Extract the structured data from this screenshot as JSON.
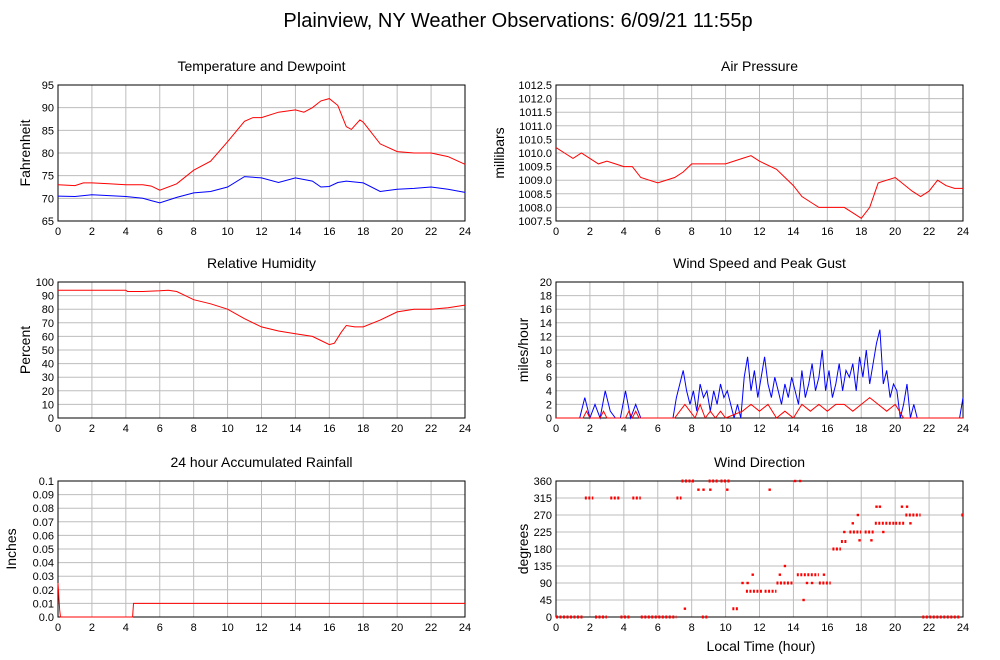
{
  "page": {
    "title": "Plainview, NY Weather Observations: 6/09/21 11:55p",
    "x_axis_label": "Local Time (hour)"
  },
  "colors": {
    "red": "#ff0000",
    "blue": "#0000ff",
    "grid": "#bdbdbd"
  },
  "chart_data": [
    {
      "id": "temp",
      "type": "line",
      "title": "Temperature and Dewpoint",
      "ylabel": "Fahrenheit",
      "xlim": [
        0,
        24
      ],
      "ylim": [
        65,
        95
      ],
      "xticks": [
        "0",
        "2",
        "4",
        "6",
        "8",
        "10",
        "12",
        "14",
        "16",
        "18",
        "20",
        "22",
        "24"
      ],
      "yticks": [
        "65",
        "70",
        "75",
        "80",
        "85",
        "90",
        "95"
      ],
      "series": [
        {
          "color": "#ff0000",
          "x": [
            0,
            1,
            1.5,
            2,
            3,
            4,
            5,
            5.5,
            6,
            7,
            8,
            9,
            10,
            11,
            11.5,
            12,
            13,
            14,
            14.5,
            15,
            15.5,
            16,
            16.5,
            17,
            17.3,
            17.8,
            18,
            19,
            20,
            21,
            22,
            23,
            24
          ],
          "y": [
            73,
            72.8,
            73.4,
            73.4,
            73.2,
            73,
            73,
            72.7,
            71.8,
            73.2,
            76.2,
            78.2,
            82.5,
            87,
            87.8,
            87.8,
            89,
            89.5,
            89,
            90,
            91.5,
            92,
            90.5,
            85.8,
            85.2,
            87.3,
            86.8,
            82,
            80.3,
            80,
            80,
            79.2,
            77.5
          ]
        },
        {
          "color": "#0000ff",
          "x": [
            0,
            1,
            2,
            3,
            4,
            5,
            5.5,
            6,
            7,
            8,
            9,
            10,
            11,
            12,
            13,
            14,
            15,
            15.5,
            16,
            16.5,
            17,
            18,
            19,
            20,
            21,
            22,
            23,
            24
          ],
          "y": [
            70.5,
            70.4,
            70.8,
            70.6,
            70.4,
            70,
            69.5,
            69,
            70.2,
            71.2,
            71.5,
            72.5,
            74.8,
            74.5,
            73.5,
            74.5,
            73.8,
            72.5,
            72.6,
            73.5,
            73.8,
            73.4,
            71.5,
            72,
            72.2,
            72.5,
            72,
            71.3
          ]
        }
      ]
    },
    {
      "id": "pressure",
      "type": "line",
      "title": "Air Pressure",
      "ylabel": "millibars",
      "xlim": [
        0,
        24
      ],
      "ylim": [
        1007.5,
        1012.5
      ],
      "xticks": [
        "0",
        "2",
        "4",
        "6",
        "8",
        "10",
        "12",
        "14",
        "16",
        "18",
        "20",
        "22",
        "24"
      ],
      "yticks": [
        "1007.5",
        "1008.0",
        "1008.5",
        "1009.0",
        "1009.5",
        "1010.0",
        "1010.5",
        "1011.0",
        "1011.5",
        "1012.0",
        "1012.5"
      ],
      "series": [
        {
          "color": "#ff0000",
          "x": [
            0,
            0.5,
            1,
            1.5,
            2,
            2.5,
            3,
            3.5,
            4,
            4.5,
            5,
            5.5,
            6,
            7,
            7.5,
            8,
            9,
            10,
            11,
            11.5,
            12,
            13,
            14,
            14.5,
            15,
            15.5,
            16,
            17,
            17.5,
            18,
            18.5,
            19,
            20,
            21,
            21.5,
            22,
            22.5,
            23,
            23.5,
            24
          ],
          "y": [
            1010.2,
            1010.0,
            1009.8,
            1010.0,
            1009.8,
            1009.6,
            1009.7,
            1009.6,
            1009.5,
            1009.5,
            1009.1,
            1009.0,
            1008.9,
            1009.1,
            1009.3,
            1009.6,
            1009.6,
            1009.6,
            1009.8,
            1009.9,
            1009.7,
            1009.4,
            1008.8,
            1008.4,
            1008.2,
            1008.0,
            1008.0,
            1008.0,
            1007.8,
            1007.6,
            1008.0,
            1008.9,
            1009.1,
            1008.6,
            1008.4,
            1008.6,
            1009.0,
            1008.8,
            1008.7,
            1008.7
          ]
        }
      ]
    },
    {
      "id": "humidity",
      "type": "line",
      "title": "Relative Humidity",
      "ylabel": "Percent",
      "xlim": [
        0,
        24
      ],
      "ylim": [
        0,
        100
      ],
      "xticks": [
        "0",
        "2",
        "4",
        "6",
        "8",
        "10",
        "12",
        "14",
        "16",
        "18",
        "20",
        "22",
        "24"
      ],
      "yticks": [
        "0",
        "10",
        "20",
        "30",
        "40",
        "50",
        "60",
        "70",
        "80",
        "90",
        "100"
      ],
      "series": [
        {
          "color": "#ff0000",
          "x": [
            0,
            1,
            2,
            3,
            4,
            4.1,
            5,
            6,
            6.5,
            7,
            7.5,
            8,
            9,
            10,
            11,
            12,
            13,
            14,
            15,
            15.5,
            16,
            16.3,
            16.7,
            17,
            17.5,
            18,
            19,
            20,
            21,
            22,
            23,
            24
          ],
          "y": [
            94,
            94,
            94,
            94,
            94,
            93,
            93,
            93.5,
            94,
            93,
            90,
            87,
            84,
            80,
            73,
            67,
            64,
            62,
            60,
            57,
            54,
            55,
            63,
            68,
            67,
            67,
            72,
            78,
            80,
            80,
            81,
            83
          ]
        }
      ]
    },
    {
      "id": "wind",
      "type": "line",
      "title": "Wind Speed and Peak Gust",
      "ylabel": "miles/hour",
      "xlim": [
        0,
        24
      ],
      "ylim": [
        0,
        20
      ],
      "xticks": [
        "0",
        "2",
        "4",
        "6",
        "8",
        "10",
        "12",
        "14",
        "16",
        "18",
        "20",
        "22",
        "24"
      ],
      "yticks": [
        "0",
        "2",
        "4",
        "6",
        "8",
        "10",
        "12",
        "14",
        "16",
        "18",
        "20"
      ],
      "series": [
        {
          "color": "#0000ff",
          "x": [
            0,
            1.4,
            1.7,
            2,
            2.3,
            2.6,
            2.9,
            3.2,
            3.5,
            3.8,
            4.1,
            4.4,
            4.7,
            5,
            5.3,
            6.9,
            7.1,
            7.3,
            7.5,
            7.7,
            7.9,
            8.1,
            8.3,
            8.5,
            8.7,
            8.9,
            9.1,
            9.3,
            9.5,
            9.7,
            9.9,
            10.1,
            10.3,
            10.5,
            10.7,
            10.9,
            11.1,
            11.3,
            11.5,
            11.7,
            11.9,
            12.1,
            12.3,
            12.5,
            12.7,
            12.9,
            13.1,
            13.3,
            13.5,
            13.7,
            13.9,
            14.1,
            14.3,
            14.5,
            14.7,
            14.9,
            15.1,
            15.3,
            15.5,
            15.7,
            15.9,
            16.1,
            16.3,
            16.5,
            16.7,
            16.9,
            17.1,
            17.3,
            17.5,
            17.7,
            17.9,
            18.1,
            18.3,
            18.5,
            18.7,
            18.9,
            19.1,
            19.3,
            19.5,
            19.7,
            19.9,
            20.1,
            20.3,
            20.5,
            20.7,
            20.9,
            21.1,
            21.3,
            21.5,
            21.7,
            23.8,
            24
          ],
          "y": [
            0,
            0,
            3,
            0,
            2,
            0,
            4,
            1,
            0,
            0,
            4,
            0,
            2,
            0,
            0,
            0,
            3,
            5,
            7,
            4,
            2,
            4,
            1,
            5,
            3,
            4,
            1,
            4,
            2,
            5,
            3,
            4,
            2,
            0,
            2,
            0,
            6,
            9,
            4,
            7,
            3,
            6,
            9,
            5,
            3,
            6,
            4,
            2,
            5,
            3,
            6,
            4,
            2,
            7,
            3,
            5,
            8,
            4,
            6,
            10,
            4,
            7,
            3,
            5,
            8,
            4,
            7,
            6,
            8,
            4,
            9,
            6,
            10,
            5,
            8,
            11,
            13,
            5,
            7,
            3,
            5,
            4,
            0,
            2,
            5,
            0,
            2,
            0,
            0,
            0,
            0,
            3
          ]
        },
        {
          "color": "#ff0000",
          "x": [
            0,
            1.6,
            1.8,
            2.0,
            2.6,
            2.8,
            3.0,
            4.1,
            4.3,
            4.5,
            4.7,
            4.9,
            5.1,
            7.0,
            7.3,
            7.6,
            7.9,
            8.2,
            8.5,
            8.8,
            9.1,
            9.4,
            9.7,
            10,
            11,
            11.5,
            12,
            12.5,
            13,
            13.5,
            14,
            14.5,
            15,
            15.5,
            16,
            16.5,
            17,
            17.5,
            18,
            18.5,
            19,
            19.5,
            20,
            20.5,
            21,
            24
          ],
          "y": [
            0,
            0,
            1,
            0,
            0,
            1,
            0,
            0,
            1,
            0,
            1,
            0,
            0,
            0,
            1,
            2,
            1,
            0,
            2,
            0,
            1,
            0,
            1,
            0,
            1,
            2,
            1,
            2,
            0,
            1,
            0,
            2,
            1,
            2,
            1,
            2,
            2,
            1,
            2,
            3,
            2,
            1,
            2,
            0,
            0,
            0
          ]
        }
      ]
    },
    {
      "id": "rain",
      "type": "line",
      "title": "24 hour Accumulated Rainfall",
      "ylabel": "Inches",
      "xlim": [
        0,
        24
      ],
      "ylim": [
        0,
        0.1
      ],
      "xticks": [
        "0",
        "2",
        "4",
        "6",
        "8",
        "10",
        "12",
        "14",
        "16",
        "18",
        "20",
        "22",
        "24"
      ],
      "yticks": [
        "0.0",
        "0.01",
        "0.02",
        "0.03",
        "0.04",
        "0.05",
        "0.06",
        "0.07",
        "0.08",
        "0.09",
        "0.1"
      ],
      "series": [
        {
          "color": "#ff0000",
          "x": [
            0,
            0.1,
            0.15,
            4.4,
            4.45,
            24
          ],
          "y": [
            0.025,
            0.005,
            0,
            0,
            0.01,
            0.01
          ]
        }
      ]
    },
    {
      "id": "direction",
      "type": "scatter",
      "title": "Wind Direction",
      "ylabel": "degrees",
      "xlabel": "Local Time (hour)",
      "xlim": [
        0,
        24
      ],
      "ylim": [
        0,
        360
      ],
      "xticks": [
        "0",
        "2",
        "4",
        "6",
        "8",
        "10",
        "12",
        "14",
        "16",
        "18",
        "20",
        "22",
        "24"
      ],
      "yticks": [
        "0",
        "45",
        "90",
        "135",
        "180",
        "225",
        "270",
        "315",
        "360"
      ],
      "segments": [
        {
          "x1": 0,
          "x2": 1.6,
          "y": 0
        },
        {
          "x1": 1.7,
          "x2": 2.2,
          "y": 315
        },
        {
          "x1": 2.3,
          "x2": 3.0,
          "y": 0
        },
        {
          "x1": 3.2,
          "x2": 3.8,
          "y": 315
        },
        {
          "x1": 3.8,
          "x2": 4.4,
          "y": 0
        },
        {
          "x1": 4.5,
          "x2": 5.0,
          "y": 315
        },
        {
          "x1": 5.0,
          "x2": 7.1,
          "y": 0
        },
        {
          "x1": 7.1,
          "x2": 7.4,
          "y": 315
        },
        {
          "x1": 7.4,
          "x2": 8.2,
          "y": 360
        },
        {
          "x1": 8.6,
          "x2": 9.0,
          "y": 0
        },
        {
          "x1": 9.0,
          "x2": 9.6,
          "y": 360
        },
        {
          "x1": 9.7,
          "x2": 10.3,
          "y": 360
        },
        {
          "x1": 10.4,
          "x2": 10.8,
          "y": 22
        },
        {
          "x1": 11.2,
          "x2": 12.2,
          "y": 68
        },
        {
          "x1": 12.3,
          "x2": 13.0,
          "y": 68
        },
        {
          "x1": 13.0,
          "x2": 14.0,
          "y": 90
        },
        {
          "x1": 14.2,
          "x2": 15.5,
          "y": 112
        },
        {
          "x1": 15.5,
          "x2": 16.2,
          "y": 90
        },
        {
          "x1": 16.3,
          "x2": 16.8,
          "y": 180
        },
        {
          "x1": 16.8,
          "x2": 17.2,
          "y": 200
        },
        {
          "x1": 17.3,
          "x2": 18.0,
          "y": 225
        },
        {
          "x1": 18.2,
          "x2": 18.8,
          "y": 225
        },
        {
          "x1": 18.8,
          "x2": 20.0,
          "y": 248
        },
        {
          "x1": 20.0,
          "x2": 20.6,
          "y": 248
        },
        {
          "x1": 20.6,
          "x2": 21.5,
          "y": 270
        },
        {
          "x1": 21.6,
          "x2": 23.8,
          "y": 0
        },
        {
          "x1": 23.9,
          "x2": 24.0,
          "y": 270
        }
      ],
      "points": [
        {
          "x": 7.6,
          "y": 22
        },
        {
          "x": 8.4,
          "y": 337
        },
        {
          "x": 8.7,
          "y": 337
        },
        {
          "x": 9.1,
          "y": 337
        },
        {
          "x": 10.1,
          "y": 337
        },
        {
          "x": 11.0,
          "y": 90
        },
        {
          "x": 11.3,
          "y": 90
        },
        {
          "x": 11.6,
          "y": 112
        },
        {
          "x": 12.6,
          "y": 337
        },
        {
          "x": 13.2,
          "y": 112
        },
        {
          "x": 13.5,
          "y": 135
        },
        {
          "x": 14.1,
          "y": 360
        },
        {
          "x": 14.4,
          "y": 360
        },
        {
          "x": 14.6,
          "y": 45
        },
        {
          "x": 14.8,
          "y": 90
        },
        {
          "x": 15.8,
          "y": 112
        },
        {
          "x": 17.0,
          "y": 225
        },
        {
          "x": 17.5,
          "y": 248
        },
        {
          "x": 17.8,
          "y": 270
        },
        {
          "x": 17.9,
          "y": 203
        },
        {
          "x": 18.6,
          "y": 203
        },
        {
          "x": 18.9,
          "y": 292
        },
        {
          "x": 19.1,
          "y": 292
        },
        {
          "x": 19.3,
          "y": 225
        },
        {
          "x": 20.4,
          "y": 292
        },
        {
          "x": 20.7,
          "y": 292
        },
        {
          "x": 20.9,
          "y": 248
        },
        {
          "x": 15.1,
          "y": 90
        }
      ]
    }
  ]
}
